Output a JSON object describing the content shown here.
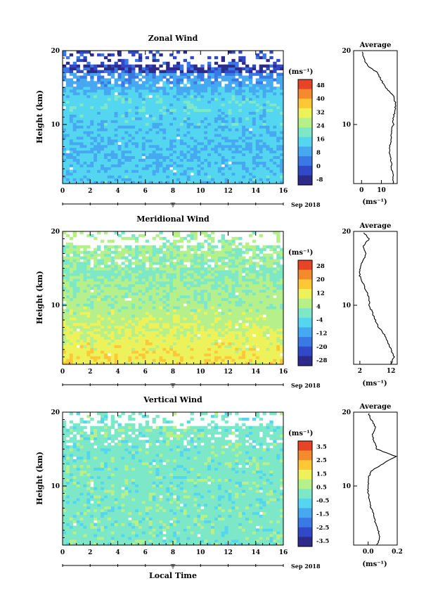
{
  "page": {
    "bottom_xlabel": "Local Time"
  },
  "chart_data": [
    {
      "type": "heatmap",
      "title": "Zonal Wind",
      "ylabel": "Height (km)",
      "xlim": [
        0,
        16
      ],
      "ylim": [
        2,
        20
      ],
      "xticks": [
        "0",
        "2",
        "4",
        "6",
        "8",
        "10",
        "12",
        "14",
        "16"
      ],
      "yticks": [
        "10",
        "20"
      ],
      "date_label": "Sep 2018",
      "marker_label": "▽",
      "colorbar": {
        "unit": "(ms⁻¹)",
        "ticks": [
          "48",
          "40",
          "32",
          "24",
          "16",
          "8",
          "0",
          "-8"
        ],
        "range": [
          -8,
          52
        ]
      },
      "dominant_value": 20,
      "profile": {
        "title": "Average",
        "xticks": [
          "0",
          "10"
        ],
        "xlim": [
          -4,
          18
        ],
        "xunit": "(ms⁻¹)",
        "heights": [
          2,
          3,
          4,
          5,
          6,
          7,
          8,
          9,
          10,
          11,
          12,
          13,
          14,
          15,
          16,
          17,
          18,
          19,
          20
        ],
        "values": [
          16,
          16,
          15,
          15,
          14,
          14,
          15,
          15,
          16,
          16,
          17,
          17,
          16,
          12,
          10,
          8,
          3,
          1,
          0
        ]
      }
    },
    {
      "type": "heatmap",
      "title": "Meridional Wind",
      "ylabel": "Height (km)",
      "xlim": [
        0,
        16
      ],
      "ylim": [
        2,
        20
      ],
      "xticks": [
        "0",
        "2",
        "4",
        "6",
        "8",
        "10",
        "12",
        "14",
        "16"
      ],
      "yticks": [
        "10",
        "20"
      ],
      "date_label": "Sep 2018",
      "marker_label": "▽",
      "colorbar": {
        "unit": "(ms⁻¹)",
        "ticks": [
          "28",
          "20",
          "12",
          "4",
          "-4",
          "-12",
          "-20",
          "-28"
        ],
        "range": [
          -32,
          32
        ]
      },
      "dominant_value": 10,
      "profile": {
        "title": "Average",
        "xticks": [
          "2",
          "12"
        ],
        "xlim": [
          0,
          14
        ],
        "xunit": "(ms⁻¹)",
        "heights": [
          2,
          3,
          4,
          5,
          6,
          7,
          8,
          9,
          10,
          11,
          12,
          13,
          14,
          15,
          16,
          17,
          18,
          19,
          20
        ],
        "values": [
          12,
          13,
          12,
          11,
          10,
          8,
          7,
          6,
          5,
          5,
          4,
          3,
          2,
          2,
          3,
          4,
          3,
          5,
          3
        ]
      }
    },
    {
      "type": "heatmap",
      "title": "Vertical Wind",
      "ylabel": "Height (km)",
      "xlim": [
        0,
        16
      ],
      "ylim": [
        2,
        20
      ],
      "xticks": [
        "0",
        "2",
        "4",
        "6",
        "8",
        "10",
        "12",
        "14",
        "16"
      ],
      "yticks": [
        "10",
        "20"
      ],
      "date_label": "Sep 2018",
      "marker_label": "▽",
      "colorbar": {
        "unit": "(ms⁻¹)",
        "ticks": [
          "3.5",
          "2.5",
          "1.5",
          "0.5",
          "-0.5",
          "-1.5",
          "-2.5",
          "-3.5"
        ],
        "range": [
          -4,
          4
        ]
      },
      "dominant_value": 0,
      "profile": {
        "title": "Average",
        "xticks": [
          "0.0",
          "0.2"
        ],
        "xlim": [
          -0.1,
          0.2
        ],
        "xunit": "(ms⁻¹)",
        "heights": [
          2,
          3,
          4,
          5,
          6,
          7,
          8,
          9,
          10,
          11,
          12,
          13,
          14,
          15,
          16,
          17,
          18,
          19,
          20
        ],
        "values": [
          0.06,
          0.08,
          0.07,
          0.05,
          0.04,
          0.02,
          0.01,
          0.0,
          0.0,
          0.0,
          0.02,
          0.1,
          0.19,
          0.06,
          0.04,
          0.03,
          0.05,
          0.02,
          0.0
        ]
      }
    }
  ]
}
